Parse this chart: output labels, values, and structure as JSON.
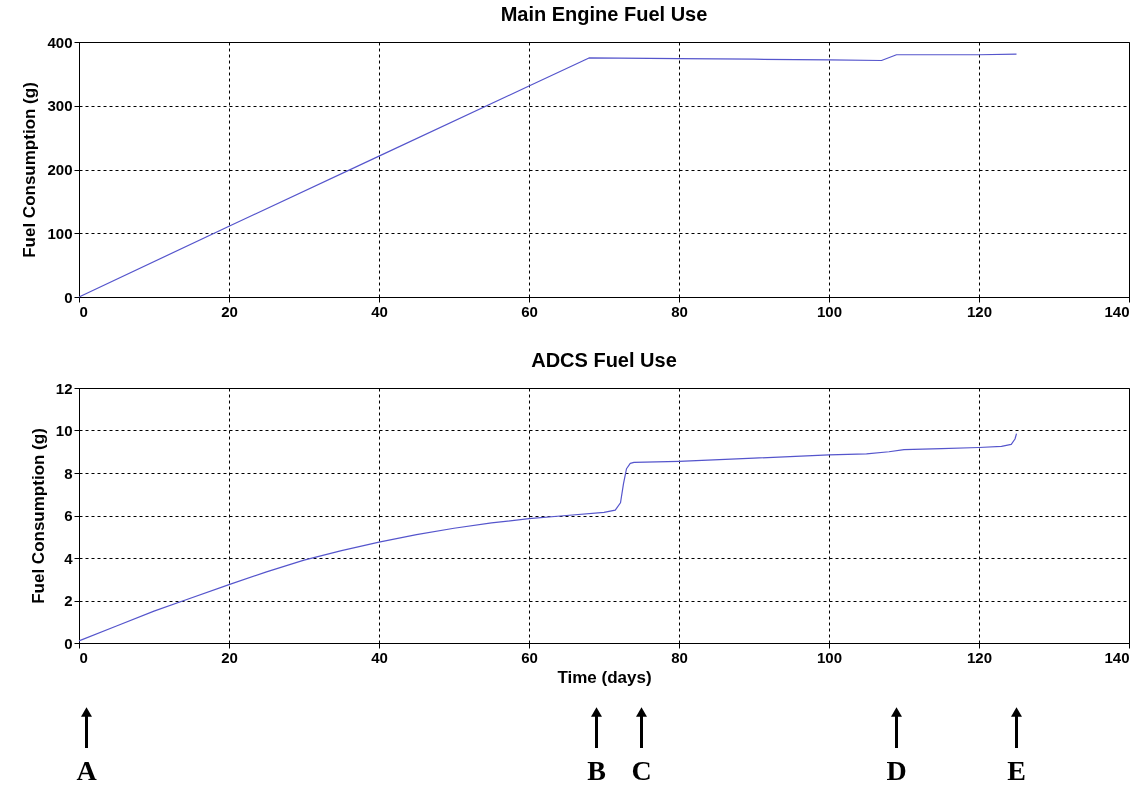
{
  "chart_data": [
    {
      "type": "line",
      "title": "Main Engine Fuel Use",
      "ylabel": "Fuel Consumption (g)",
      "grid": true,
      "xlim": [
        0,
        140
      ],
      "xticks": [
        0,
        20,
        40,
        60,
        80,
        100,
        120,
        140
      ],
      "ylim": [
        0,
        400
      ],
      "yticks": [
        0,
        100,
        200,
        300,
        400
      ],
      "series": [
        {
          "color": "#5555cc",
          "x": [
            0,
            20,
            40,
            60,
            68,
            80,
            90,
            100,
            107,
            109,
            120,
            125
          ],
          "values": [
            0,
            111,
            221,
            331,
            375,
            374,
            373,
            372,
            371,
            380,
            380,
            381
          ]
        }
      ]
    },
    {
      "type": "line",
      "title": "ADCS Fuel Use",
      "xlabel": "Time (days)",
      "ylabel": "Fuel Consumption (g)",
      "grid": true,
      "xlim": [
        0,
        140
      ],
      "xticks": [
        0,
        20,
        40,
        60,
        80,
        100,
        120,
        140
      ],
      "ylim": [
        0,
        12
      ],
      "yticks": [
        0,
        2,
        4,
        6,
        8,
        10,
        12
      ],
      "series": [
        {
          "color": "#5555cc",
          "x": [
            0,
            5,
            10,
            14,
            20,
            25,
            30,
            35,
            40,
            45,
            50,
            55,
            60,
            65,
            70,
            71.5,
            72.2,
            72.6,
            73,
            73.5,
            74,
            80,
            90,
            100,
            105,
            108,
            110,
            115,
            120,
            123,
            124.3,
            124.8,
            125
          ],
          "values": [
            0.1,
            0.8,
            1.5,
            2.0,
            2.75,
            3.35,
            3.9,
            4.35,
            4.75,
            5.1,
            5.4,
            5.65,
            5.85,
            6.0,
            6.15,
            6.25,
            6.6,
            7.5,
            8.2,
            8.45,
            8.5,
            8.55,
            8.7,
            8.85,
            8.9,
            9.0,
            9.1,
            9.15,
            9.2,
            9.25,
            9.35,
            9.6,
            9.85
          ]
        }
      ],
      "ref_lines": [
        {
          "axis": "x",
          "value": 1,
          "label": "A"
        },
        {
          "axis": "x",
          "value": 69,
          "label": "B"
        },
        {
          "axis": "x",
          "value": 75,
          "label": "C"
        },
        {
          "axis": "x",
          "value": 109,
          "label": "D"
        },
        {
          "axis": "x",
          "value": 125,
          "label": "E"
        }
      ]
    }
  ]
}
